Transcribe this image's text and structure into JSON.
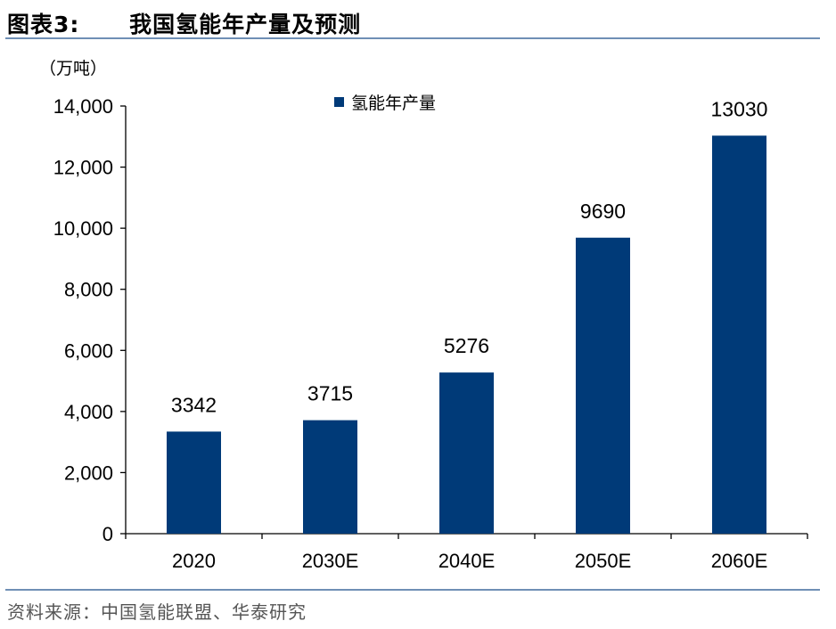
{
  "figure": {
    "label": "图表3:",
    "title": "我国氢能年产量及预测"
  },
  "unit_label": "（万吨）",
  "source": "资料来源：中国氢能联盟、华泰研究",
  "colors": {
    "bar": "#003a78",
    "rule": "#6f8fb5"
  },
  "chart_data": {
    "type": "bar",
    "title": "我国氢能年产量及预测",
    "categories": [
      "2020",
      "2030E",
      "2040E",
      "2050E",
      "2060E"
    ],
    "series": [
      {
        "name": "氢能年产量",
        "values": [
          3342,
          3715,
          5276,
          9690,
          13030
        ]
      }
    ],
    "value_labels": [
      "3342",
      "3715",
      "5276",
      "9690",
      "13030"
    ],
    "xlabel": "",
    "ylabel": "（万吨）",
    "ylim": [
      0,
      14000
    ],
    "yticks": [
      0,
      2000,
      4000,
      6000,
      8000,
      10000,
      12000,
      14000
    ],
    "ytick_labels": [
      "0",
      "2,000",
      "4,000",
      "6,000",
      "8,000",
      "10,000",
      "12,000",
      "14,000"
    ],
    "grid": false,
    "legend": "top-center"
  }
}
